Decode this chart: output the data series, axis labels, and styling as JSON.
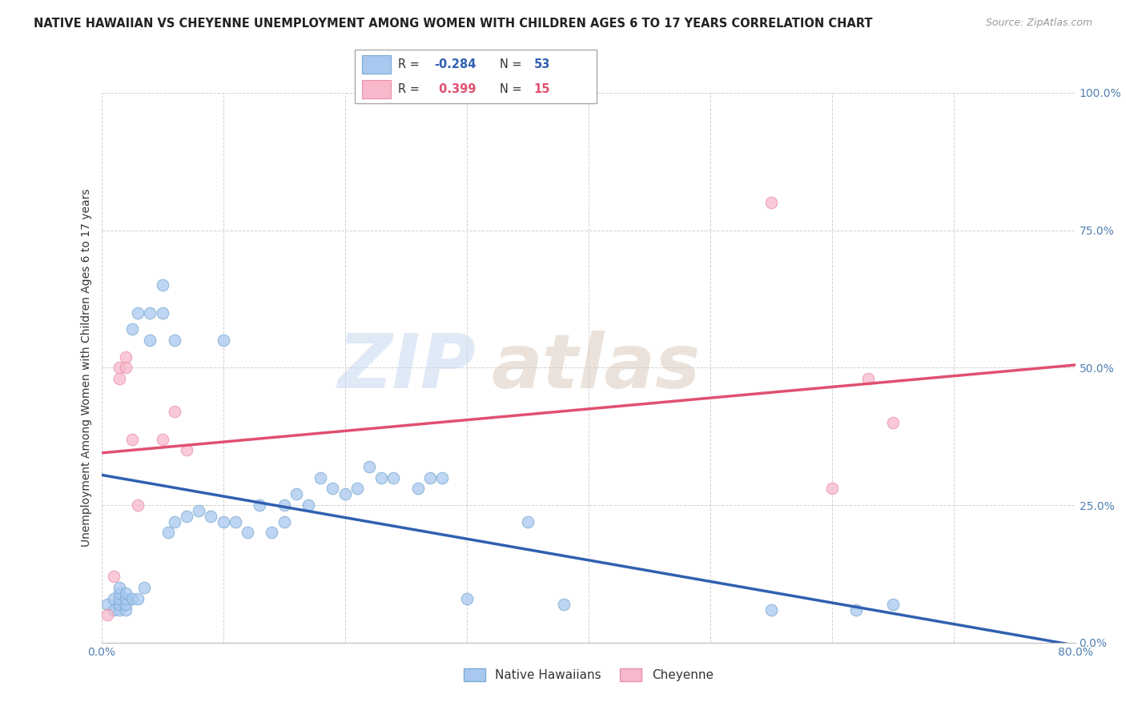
{
  "title": "NATIVE HAWAIIAN VS CHEYENNE UNEMPLOYMENT AMONG WOMEN WITH CHILDREN AGES 6 TO 17 YEARS CORRELATION CHART",
  "source": "Source: ZipAtlas.com",
  "ylabel": "Unemployment Among Women with Children Ages 6 to 17 years",
  "xlim": [
    0.0,
    0.8
  ],
  "ylim": [
    0.0,
    1.0
  ],
  "xticks": [
    0.0,
    0.1,
    0.2,
    0.3,
    0.4,
    0.5,
    0.6,
    0.7,
    0.8
  ],
  "xticklabels": [
    "0.0%",
    "",
    "",
    "",
    "",
    "",
    "",
    "",
    "80.0%"
  ],
  "yticks": [
    0.0,
    0.25,
    0.5,
    0.75,
    1.0
  ],
  "yticklabels": [
    "0.0%",
    "25.0%",
    "50.0%",
    "75.0%",
    "100.0%"
  ],
  "native_hawaiian_x": [
    0.005,
    0.01,
    0.01,
    0.015,
    0.015,
    0.015,
    0.015,
    0.015,
    0.02,
    0.02,
    0.02,
    0.02,
    0.025,
    0.025,
    0.03,
    0.03,
    0.035,
    0.04,
    0.04,
    0.05,
    0.05,
    0.055,
    0.06,
    0.06,
    0.07,
    0.08,
    0.09,
    0.1,
    0.1,
    0.11,
    0.12,
    0.13,
    0.14,
    0.15,
    0.15,
    0.16,
    0.17,
    0.18,
    0.19,
    0.2,
    0.21,
    0.22,
    0.23,
    0.24,
    0.26,
    0.27,
    0.28,
    0.3,
    0.35,
    0.38,
    0.55,
    0.62,
    0.65
  ],
  "native_hawaiian_y": [
    0.07,
    0.06,
    0.08,
    0.06,
    0.07,
    0.08,
    0.09,
    0.1,
    0.06,
    0.07,
    0.08,
    0.09,
    0.08,
    0.57,
    0.08,
    0.6,
    0.1,
    0.55,
    0.6,
    0.6,
    0.65,
    0.2,
    0.22,
    0.55,
    0.23,
    0.24,
    0.23,
    0.22,
    0.55,
    0.22,
    0.2,
    0.25,
    0.2,
    0.22,
    0.25,
    0.27,
    0.25,
    0.3,
    0.28,
    0.27,
    0.28,
    0.32,
    0.3,
    0.3,
    0.28,
    0.3,
    0.3,
    0.08,
    0.22,
    0.07,
    0.06,
    0.06,
    0.07
  ],
  "cheyenne_x": [
    0.005,
    0.01,
    0.015,
    0.015,
    0.02,
    0.02,
    0.025,
    0.03,
    0.05,
    0.06,
    0.07,
    0.55,
    0.6,
    0.63,
    0.65
  ],
  "cheyenne_y": [
    0.05,
    0.12,
    0.48,
    0.5,
    0.5,
    0.52,
    0.37,
    0.25,
    0.37,
    0.42,
    0.35,
    0.8,
    0.28,
    0.48,
    0.4
  ],
  "nh_color": "#a8c8f0",
  "nh_edge_color": "#7aaad0",
  "cheyenne_color": "#f8b8cc",
  "cheyenne_edge_color": "#e890a8",
  "nh_trend_color": "#3060b0",
  "cheyenne_trend_color": "#e05070",
  "nh_trend_y0": 0.305,
  "nh_trend_y1": -0.005,
  "cheyenne_trend_y0": 0.345,
  "cheyenne_trend_y1": 0.505,
  "marker_size": 110,
  "background_color": "#ffffff",
  "grid_color": "#cccccc",
  "title_fontsize": 10.5,
  "axis_label_fontsize": 10,
  "tick_fontsize": 10
}
